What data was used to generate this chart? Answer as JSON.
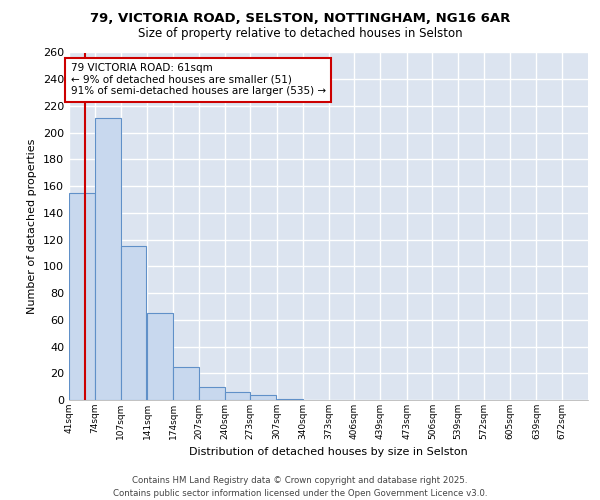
{
  "title1": "79, VICTORIA ROAD, SELSTON, NOTTINGHAM, NG16 6AR",
  "title2": "Size of property relative to detached houses in Selston",
  "xlabel": "Distribution of detached houses by size in Selston",
  "ylabel": "Number of detached properties",
  "footer": "Contains HM Land Registry data © Crown copyright and database right 2025.\nContains public sector information licensed under the Open Government Licence v3.0.",
  "bin_edges": [
    41,
    74,
    107,
    141,
    174,
    207,
    240,
    273,
    307,
    340,
    373,
    406,
    439,
    473,
    506,
    539,
    572,
    605,
    639,
    672,
    705
  ],
  "bar_heights": [
    155,
    211,
    115,
    65,
    25,
    10,
    6,
    4,
    1,
    0,
    0,
    0,
    0,
    0,
    0,
    0,
    0,
    0,
    0,
    0
  ],
  "bar_color": "#c8d8ee",
  "bar_edge_color": "#6090c8",
  "bg_color": "#dce4f0",
  "grid_color": "#ffffff",
  "fig_bg_color": "#ffffff",
  "property_size": 61,
  "red_line_color": "#cc0000",
  "annotation_text": "79 VICTORIA ROAD: 61sqm\n← 9% of detached houses are smaller (51)\n91% of semi-detached houses are larger (535) →",
  "annotation_box_color": "#ffffff",
  "annotation_border_color": "#cc0000",
  "ylim": [
    0,
    260
  ],
  "yticks": [
    0,
    20,
    40,
    60,
    80,
    100,
    120,
    140,
    160,
    180,
    200,
    220,
    240,
    260
  ]
}
